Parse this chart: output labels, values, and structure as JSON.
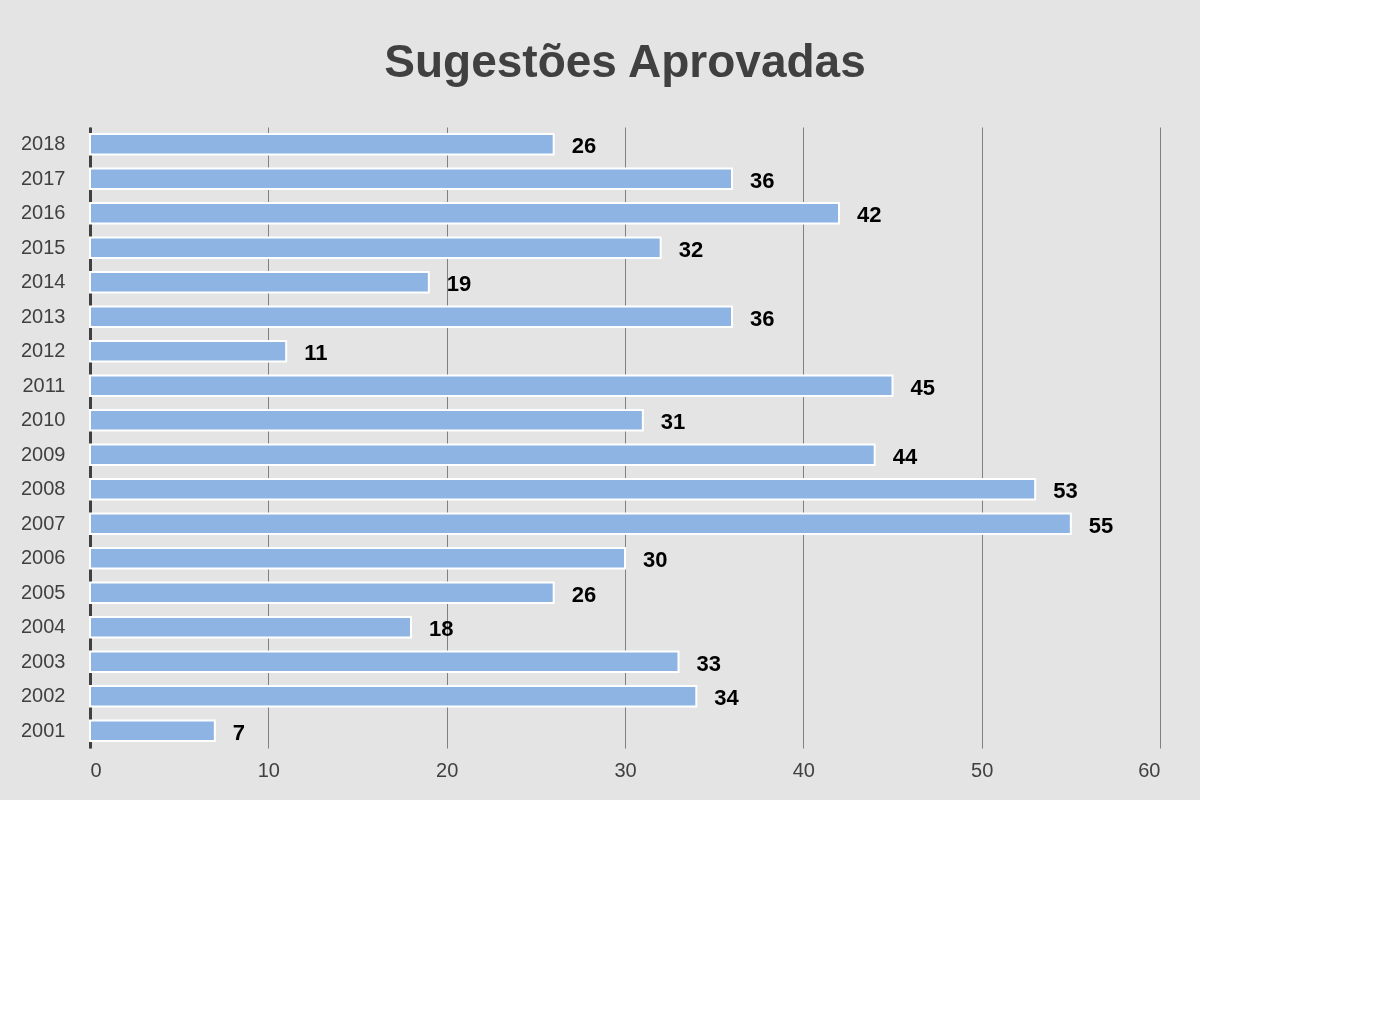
{
  "chart_data": {
    "type": "bar",
    "orientation": "horizontal",
    "title": "Sugestões Aprovadas",
    "categories": [
      "2018",
      "2017",
      "2016",
      "2015",
      "2014",
      "2013",
      "2012",
      "2011",
      "2010",
      "2009",
      "2008",
      "2007",
      "2006",
      "2005",
      "2004",
      "2003",
      "2002",
      "2001"
    ],
    "values": [
      26,
      36,
      42,
      32,
      19,
      36,
      11,
      45,
      31,
      44,
      53,
      55,
      30,
      26,
      18,
      33,
      34,
      7
    ],
    "color": "#8db4e2",
    "xlim": [
      0,
      60
    ],
    "xticks": [
      0,
      10,
      20,
      30,
      40,
      50,
      60
    ],
    "grid": "x",
    "data_labels": true
  }
}
